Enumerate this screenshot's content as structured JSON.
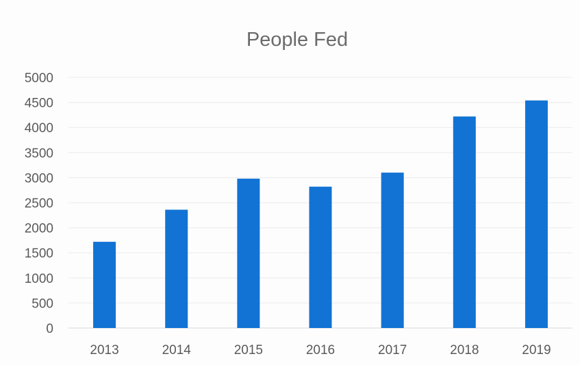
{
  "chart_data": {
    "type": "bar",
    "title": "People Fed",
    "xlabel": "",
    "ylabel": "",
    "categories": [
      "2013",
      "2014",
      "2015",
      "2016",
      "2017",
      "2018",
      "2019"
    ],
    "values": [
      1720,
      2360,
      2980,
      2820,
      3100,
      4220,
      4540
    ],
    "ylim": [
      0,
      5000
    ],
    "yticks": [
      "0",
      "500",
      "1000",
      "1500",
      "2000",
      "2500",
      "3000",
      "3500",
      "4000",
      "4500",
      "5000"
    ],
    "grid": true,
    "legend": "none",
    "bar_color": "#1273d4"
  }
}
